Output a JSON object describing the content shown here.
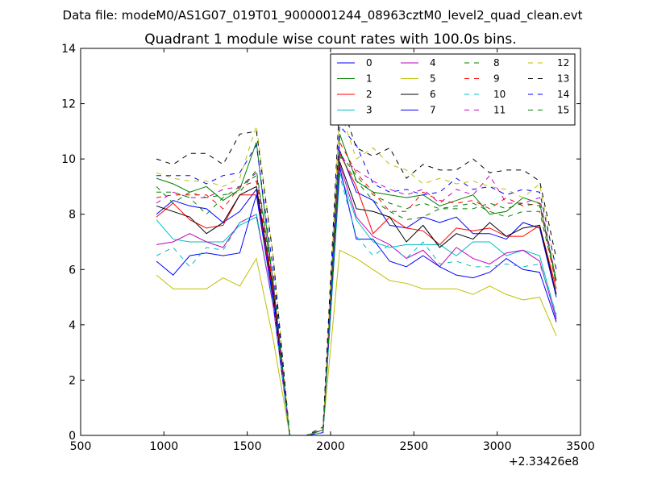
{
  "figure": {
    "suptitle": "Data file: modeM0/AS1G07_019T01_9000001244_08963cztM0_level2_quad_clean.evt"
  },
  "chart_data": {
    "type": "line",
    "title": "Quadrant 1 module wise count rates with 100.0s bins.",
    "xlabel": "",
    "ylabel": "",
    "x_offset_label": "+2.33426e8",
    "xlim": [
      500,
      3500
    ],
    "ylim": [
      0,
      14
    ],
    "x_ticks": [
      500,
      1000,
      1500,
      2000,
      2500,
      3000,
      3500
    ],
    "x_tick_labels": [
      "500",
      "1000",
      "1500",
      "2000",
      "2500",
      "3000",
      "3500"
    ],
    "y_ticks": [
      0,
      2,
      4,
      6,
      8,
      10,
      12,
      14
    ],
    "y_tick_labels": [
      "0",
      "2",
      "4",
      "6",
      "8",
      "10",
      "12",
      "14"
    ],
    "grid": false,
    "legend_position": "top-right",
    "legend_columns": 4,
    "x": [
      955,
      1055,
      1155,
      1255,
      1355,
      1455,
      1555,
      1655,
      1755,
      1855,
      1955,
      2055,
      2155,
      2255,
      2355,
      2455,
      2555,
      2655,
      2755,
      2855,
      2955,
      3055,
      3155,
      3255,
      3355
    ],
    "series": [
      {
        "name": "0",
        "color": "#0000ff",
        "dash": "solid",
        "values": [
          8.0,
          8.5,
          8.3,
          8.2,
          7.7,
          8.1,
          8.9,
          5.0,
          0.0,
          0.0,
          0.2,
          10.3,
          8.8,
          8.5,
          7.6,
          7.5,
          7.9,
          7.7,
          7.9,
          7.3,
          7.3,
          7.1,
          7.7,
          7.5,
          5.0
        ]
      },
      {
        "name": "1",
        "color": "#008000",
        "dash": "solid",
        "values": [
          9.3,
          9.1,
          8.8,
          9.0,
          8.5,
          8.9,
          10.6,
          5.5,
          0.0,
          0.0,
          0.2,
          10.9,
          9.2,
          8.8,
          8.7,
          8.6,
          8.7,
          8.3,
          8.5,
          8.7,
          8.0,
          8.1,
          8.6,
          8.4,
          5.6
        ]
      },
      {
        "name": "2",
        "color": "#ff0000",
        "dash": "solid",
        "values": [
          7.9,
          8.4,
          7.8,
          7.5,
          7.6,
          8.7,
          8.7,
          5.2,
          0.0,
          0.0,
          0.2,
          10.2,
          9.0,
          7.3,
          7.9,
          7.5,
          7.4,
          6.9,
          7.5,
          7.4,
          7.5,
          7.2,
          7.2,
          7.6,
          5.3
        ]
      },
      {
        "name": "3",
        "color": "#00bfbf",
        "dash": "solid",
        "values": [
          7.8,
          7.1,
          7.0,
          7.0,
          7.0,
          7.6,
          7.9,
          4.8,
          0.0,
          0.0,
          0.2,
          9.5,
          7.8,
          7.0,
          6.8,
          6.9,
          6.9,
          6.9,
          6.5,
          7.0,
          7.0,
          6.5,
          6.7,
          6.5,
          4.3
        ]
      },
      {
        "name": "4",
        "color": "#bf00bf",
        "dash": "solid",
        "values": [
          6.9,
          7.0,
          7.3,
          7.0,
          6.8,
          7.7,
          8.0,
          4.7,
          0.0,
          0.0,
          0.2,
          9.8,
          7.9,
          7.2,
          6.9,
          6.4,
          6.7,
          6.1,
          6.8,
          6.4,
          6.2,
          6.6,
          6.7,
          6.3,
          4.2
        ]
      },
      {
        "name": "5",
        "color": "#bfbf00",
        "dash": "solid",
        "values": [
          5.8,
          5.3,
          5.3,
          5.3,
          5.7,
          5.4,
          6.4,
          3.5,
          0.0,
          0.0,
          0.2,
          6.7,
          6.4,
          6.0,
          5.6,
          5.5,
          5.3,
          5.3,
          5.3,
          5.1,
          5.4,
          5.1,
          4.9,
          5.0,
          3.6
        ]
      },
      {
        "name": "6",
        "color": "#000000",
        "dash": "solid",
        "values": [
          8.3,
          8.1,
          7.9,
          7.3,
          7.7,
          8.7,
          9.0,
          5.3,
          0.0,
          0.0,
          0.2,
          9.9,
          8.2,
          8.1,
          7.9,
          7.0,
          7.6,
          6.8,
          7.3,
          7.1,
          7.7,
          7.2,
          7.5,
          7.6,
          5.1
        ]
      },
      {
        "name": "7",
        "color": "#0000ff",
        "dash": "solid",
        "values": [
          6.3,
          5.8,
          6.5,
          6.6,
          6.5,
          6.6,
          8.7,
          4.9,
          0.0,
          0.0,
          0.1,
          9.7,
          7.1,
          7.1,
          6.3,
          6.1,
          6.5,
          6.1,
          5.8,
          5.7,
          5.9,
          6.4,
          6.0,
          5.9,
          4.1
        ]
      },
      {
        "name": "8",
        "color": "#008000",
        "dash": "dashed",
        "values": [
          9.0,
          8.4,
          8.8,
          8.6,
          8.7,
          8.8,
          9.6,
          5.6,
          0.0,
          0.0,
          0.2,
          10.1,
          9.2,
          8.5,
          8.1,
          7.8,
          7.9,
          8.2,
          8.3,
          8.4,
          8.1,
          7.9,
          8.1,
          8.1,
          5.5
        ]
      },
      {
        "name": "9",
        "color": "#ff0000",
        "dash": "dashed",
        "values": [
          8.6,
          8.7,
          8.7,
          8.7,
          8.2,
          9.0,
          9.2,
          5.4,
          0.0,
          0.0,
          0.2,
          10.6,
          9.5,
          8.8,
          8.1,
          8.1,
          8.8,
          8.5,
          8.4,
          8.5,
          8.2,
          8.6,
          8.3,
          8.4,
          5.4
        ]
      },
      {
        "name": "10",
        "color": "#00bfbf",
        "dash": "dashed",
        "values": [
          6.5,
          6.8,
          6.1,
          6.8,
          6.7,
          7.7,
          8.0,
          4.8,
          0.0,
          0.0,
          0.1,
          9.4,
          7.2,
          6.5,
          6.9,
          6.4,
          7.0,
          6.2,
          6.3,
          6.1,
          6.1,
          6.2,
          6.1,
          6.2,
          4.4
        ]
      },
      {
        "name": "11",
        "color": "#bf00bf",
        "dash": "dashed",
        "values": [
          8.4,
          8.8,
          8.6,
          8.6,
          8.9,
          9.0,
          9.5,
          5.6,
          0.0,
          0.0,
          0.2,
          10.1,
          9.6,
          9.2,
          8.9,
          8.7,
          8.9,
          8.4,
          8.9,
          8.7,
          9.4,
          8.4,
          8.4,
          8.6,
          5.6
        ]
      },
      {
        "name": "12",
        "color": "#bfbf00",
        "dash": "dashed",
        "values": [
          9.5,
          9.3,
          9.2,
          9.2,
          9.0,
          9.3,
          11.2,
          6.5,
          0.0,
          0.0,
          0.2,
          11.8,
          10.0,
          10.4,
          9.8,
          9.6,
          9.1,
          9.3,
          9.1,
          9.2,
          9.0,
          8.9,
          8.6,
          9.1,
          5.9
        ]
      },
      {
        "name": "13",
        "color": "#000000",
        "dash": "dashed",
        "values": [
          10.0,
          9.8,
          10.2,
          10.2,
          9.8,
          10.9,
          11.0,
          6.5,
          0.0,
          0.0,
          0.3,
          12.2,
          10.4,
          10.1,
          10.4,
          9.3,
          9.8,
          9.6,
          9.6,
          10.0,
          9.5,
          9.6,
          9.6,
          9.2,
          6.4
        ]
      },
      {
        "name": "14",
        "color": "#0000ff",
        "dash": "dashed",
        "values": [
          9.4,
          9.4,
          9.4,
          9.1,
          9.4,
          9.5,
          10.5,
          6.0,
          0.0,
          0.0,
          0.2,
          11.2,
          10.5,
          9.1,
          8.8,
          8.9,
          8.7,
          8.8,
          9.3,
          8.9,
          9.0,
          8.7,
          8.9,
          8.8,
          6.0
        ]
      },
      {
        "name": "15",
        "color": "#008000",
        "dash": "dashed",
        "values": [
          8.8,
          8.8,
          8.6,
          8.0,
          8.6,
          9.0,
          9.4,
          5.6,
          0.0,
          0.0,
          0.2,
          10.2,
          9.4,
          8.7,
          8.4,
          8.2,
          8.4,
          8.2,
          8.2,
          8.2,
          8.4,
          8.2,
          8.4,
          8.3,
          5.6
        ]
      }
    ]
  }
}
